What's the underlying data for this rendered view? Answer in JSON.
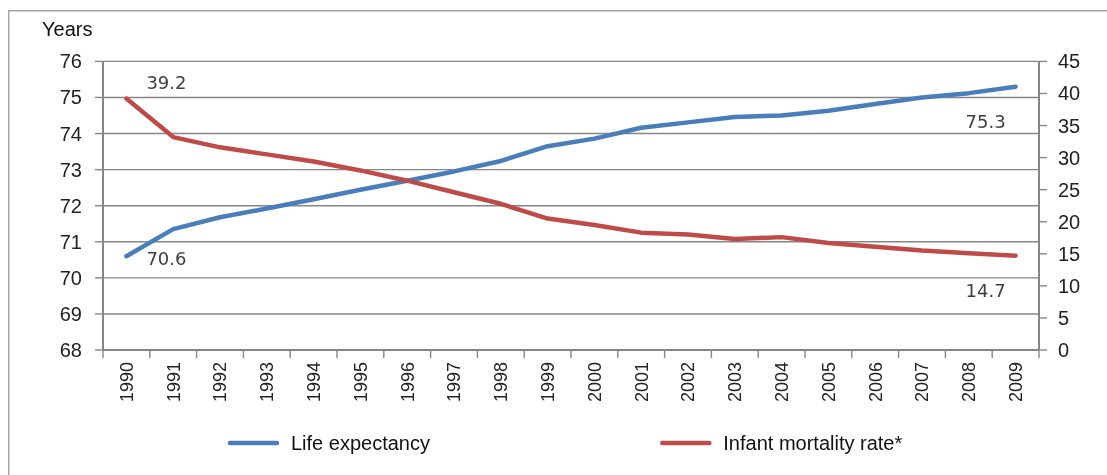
{
  "chart_data": {
    "type": "line",
    "ylabel": "Years",
    "categories": [
      "1990",
      "1991",
      "1992",
      "1993",
      "1994",
      "1995",
      "1996",
      "1997",
      "1998",
      "1999",
      "2000",
      "2001",
      "2002",
      "2003",
      "2004",
      "2005",
      "2006",
      "2007",
      "2008",
      "2009"
    ],
    "series": [
      {
        "name": "Life expectancy",
        "color": "#4a7ebb",
        "values": [
          70.6,
          71.35,
          71.68,
          71.92,
          72.18,
          72.44,
          72.69,
          72.95,
          73.24,
          73.65,
          73.86,
          74.16,
          74.31,
          74.46,
          74.5,
          74.63,
          74.82,
          75.0,
          75.12,
          75.3
        ],
        "value_labels": [
          "70.6",
          null,
          null,
          null,
          null,
          null,
          null,
          null,
          null,
          null,
          null,
          null,
          null,
          null,
          null,
          null,
          null,
          null,
          null,
          "75.3"
        ]
      },
      {
        "name": "Infant mortality rate*",
        "color": "#be4b48",
        "axis": "y2",
        "values": [
          39.2,
          33.2,
          31.6,
          30.5,
          29.4,
          28.0,
          26.4,
          24.6,
          22.8,
          20.5,
          19.5,
          18.3,
          18.0,
          17.3,
          17.6,
          16.7,
          16.1,
          15.5,
          15.1,
          14.7
        ],
        "value_labels": [
          "39.2",
          null,
          null,
          null,
          null,
          null,
          null,
          null,
          null,
          null,
          null,
          null,
          null,
          null,
          null,
          null,
          null,
          null,
          null,
          "14.7"
        ]
      }
    ],
    "ylim": [
      68,
      76
    ],
    "yticks": [
      68,
      69,
      70,
      71,
      72,
      73,
      74,
      75,
      76
    ],
    "y2lim": [
      0,
      45
    ],
    "y2ticks": [
      0,
      5,
      10,
      15,
      20,
      25,
      30,
      35,
      40,
      45
    ],
    "grid": "y",
    "legend": "bottom"
  }
}
